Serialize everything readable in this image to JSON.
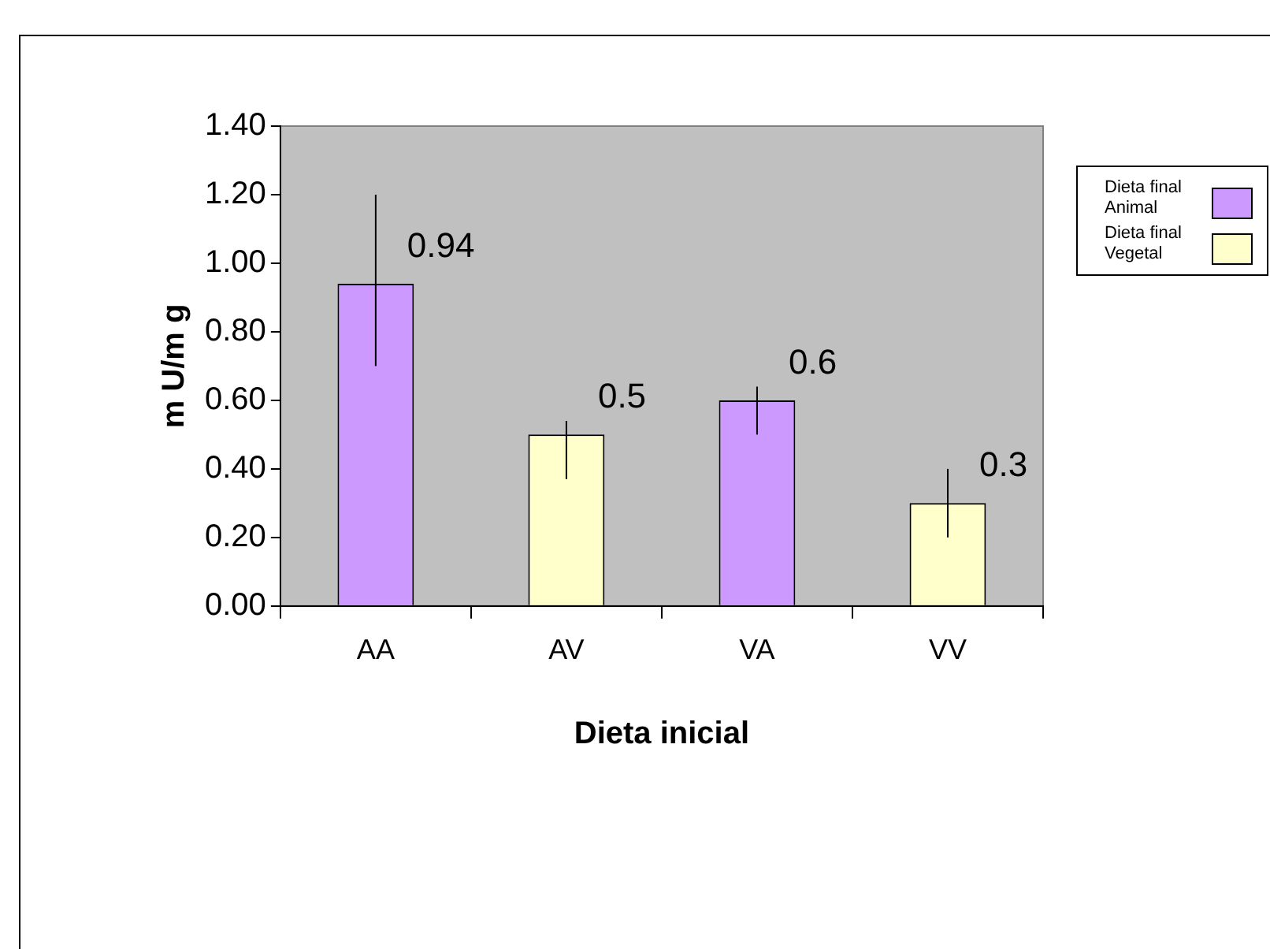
{
  "chart_data": {
    "type": "bar",
    "xlabel": "Dieta inicial",
    "ylabel": "m U/m g",
    "categories": [
      "AA",
      "AV",
      "VA",
      "VV"
    ],
    "series": [
      {
        "name": "Dieta final Animal",
        "color": "#cc99ff",
        "values": [
          0.94,
          null,
          0.6,
          null
        ],
        "errors": [
          [
            0.7,
            1.2
          ],
          null,
          [
            0.5,
            0.64
          ],
          null
        ]
      },
      {
        "name": "Dieta final Vegetal",
        "color": "#ffffcc",
        "values": [
          null,
          0.5,
          null,
          0.3
        ],
        "errors": [
          null,
          [
            0.37,
            0.54
          ],
          null,
          [
            0.2,
            0.4
          ]
        ]
      }
    ],
    "ylim": [
      0,
      1.4
    ],
    "yticks": [
      {
        "value": 0,
        "label": "0.00"
      },
      {
        "value": 0.2,
        "label": "0.20"
      },
      {
        "value": 0.4,
        "label": "0.40"
      },
      {
        "value": 0.6,
        "label": "0.60"
      },
      {
        "value": 0.8,
        "label": "0.80"
      },
      {
        "value": 1,
        "label": "1.00"
      },
      {
        "value": 1.2,
        "label": "1.20"
      },
      {
        "value": 1.4,
        "label": "1.40"
      }
    ],
    "data_labels": true,
    "legend": "right"
  }
}
